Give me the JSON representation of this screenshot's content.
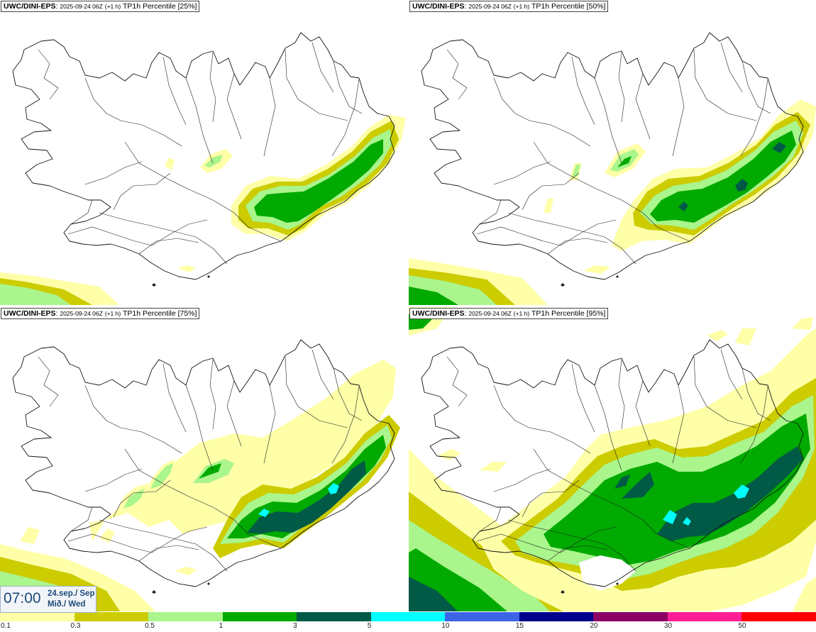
{
  "panels": [
    {
      "source": "UWC/DINI-EPS",
      "run": "2025-09-24 06Z",
      "lead": "(+1 h)",
      "param": "TP1h Percentile [25%]"
    },
    {
      "source": "UWC/DINI-EPS",
      "run": "2025-09-24 06Z",
      "lead": "(+1 h)",
      "param": "TP1h Percentile [50%]"
    },
    {
      "source": "UWC/DINI-EPS",
      "run": "2025-09-24 06Z",
      "lead": "(+1 h)",
      "param": "TP1h Percentile [75%]"
    },
    {
      "source": "UWC/DINI-EPS",
      "run": "2025-09-24 06Z",
      "lead": "(+1 h)",
      "param": "TP1h Percentile [95%]"
    }
  ],
  "valid_time": {
    "time": "07:00",
    "date_line1": "24.sep./ Sep",
    "date_line2": "Mið./ Wed"
  },
  "legend": {
    "thresholds": [
      "0.1",
      "0.3",
      "0.5",
      "1",
      "3",
      "5",
      "10",
      "15",
      "20",
      "30",
      "50"
    ],
    "colors": [
      "#ffffa8",
      "#cccc00",
      "#aaf58c",
      "#00aa00",
      "#005a46",
      "#00ffff",
      "#3c64e6",
      "#00008c",
      "#8c0064",
      "#ff1e96",
      "#ff0000"
    ]
  },
  "colors": {
    "light_yellow": "#ffffa8",
    "olive": "#cccc00",
    "light_green": "#aaf58c",
    "green": "#00aa00",
    "dark_green": "#005a46",
    "cyan": "#00ffff"
  }
}
